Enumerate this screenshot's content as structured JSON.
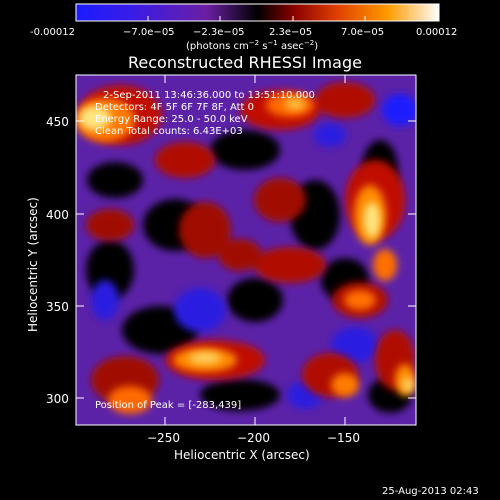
{
  "title": "Reconstructed RHESSI Image",
  "colorbar": {
    "ticks": [
      "-0.00012",
      "−7.0e−05",
      "−2.3e−05",
      "2.3e−05",
      "7.0e−05",
      "0.00012"
    ],
    "units_line_1": "(photons cm",
    "units_sup_1": "−2",
    "units_line_2": " s",
    "units_sup_2": "−1",
    "units_line_3": " asec",
    "units_sup_3": "−2",
    "units_line_4": ")",
    "colors": [
      "#1c1cff",
      "#6b1fa3",
      "#000000",
      "#8a0000",
      "#e04000",
      "#ff9b00",
      "#ffffff"
    ]
  },
  "info": {
    "time_range": "2-Sep-2011 13:46:36.000 to 13:51:10.000",
    "detectors": "Detectors: 4F 5F 6F 7F 8F, Att 0",
    "energy_range": "Energy Range: 25.0 - 50.0 keV",
    "counts": "Clean    Total counts: 6.43E+03",
    "peak": "Position of Peak = [-283,439]"
  },
  "axes": {
    "xlabel": "Heliocentric X (arcsec)",
    "ylabel": "Heliocentric Y (arcsec)",
    "xticks": [
      "−250",
      "−200",
      "−150"
    ],
    "yticks": [
      "450",
      "400",
      "350",
      "300"
    ],
    "x_range": [
      -298,
      -108
    ],
    "y_range": [
      283,
      473
    ]
  },
  "footer": "25-Aug-2013 02:43"
}
